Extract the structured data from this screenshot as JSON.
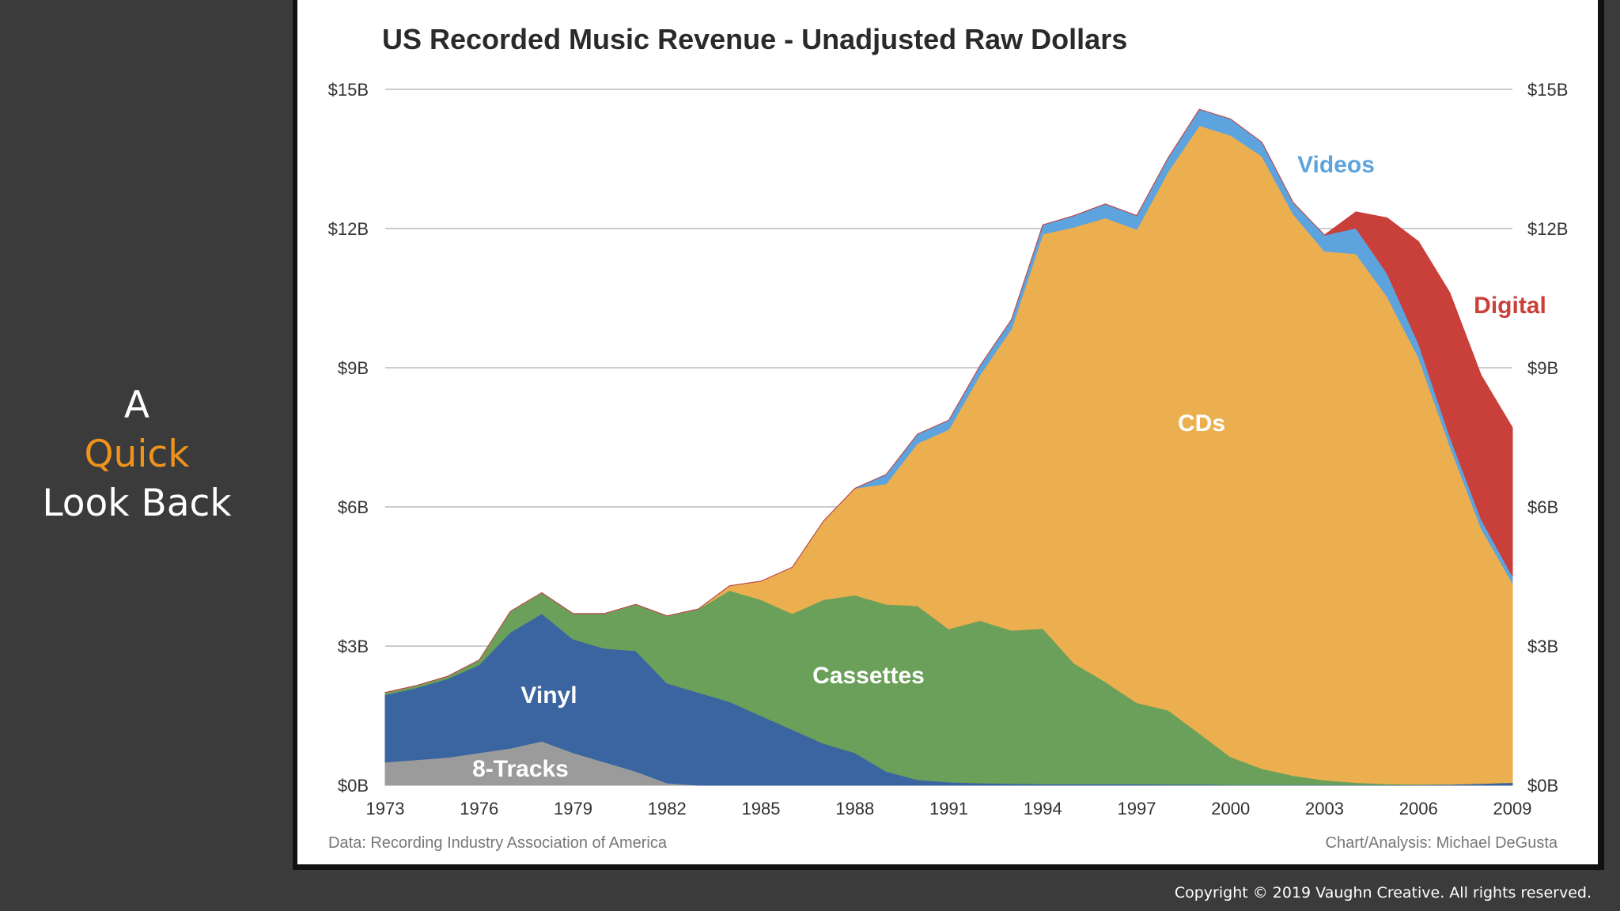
{
  "slide": {
    "title_line1": "A",
    "title_line2": "Quick",
    "title_line3": "Look Back",
    "copyright": "Copyright © 2019 Vaughn Creative. All rights reserved.",
    "accent_color": "#f0931a"
  },
  "chart_data": {
    "type": "area",
    "stacked": true,
    "title": "US Recorded Music Revenue - Unadjusted Raw Dollars",
    "xlabel": "",
    "ylabel": "",
    "x": [
      1973,
      1974,
      1975,
      1976,
      1977,
      1978,
      1979,
      1980,
      1981,
      1982,
      1983,
      1984,
      1985,
      1986,
      1987,
      1988,
      1989,
      1990,
      1991,
      1992,
      1993,
      1994,
      1995,
      1996,
      1997,
      1998,
      1999,
      2000,
      2001,
      2002,
      2003,
      2004,
      2005,
      2006,
      2007,
      2008,
      2009
    ],
    "xticks": [
      1973,
      1976,
      1979,
      1982,
      1985,
      1988,
      1991,
      1994,
      1997,
      2000,
      2003,
      2006,
      2009
    ],
    "xtick_labels": [
      "1973",
      "1976",
      "1979",
      "1982",
      "1985",
      "1988",
      "1991",
      "1994",
      "1997",
      "2000",
      "2003",
      "2006",
      "2009"
    ],
    "ylim": [
      0,
      15
    ],
    "yticks": [
      0,
      3,
      6,
      9,
      12,
      15
    ],
    "ytick_labels": [
      "$0B",
      "$3B",
      "$6B",
      "$9B",
      "$12B",
      "$15B"
    ],
    "grid": true,
    "series": [
      {
        "name": "8-Tracks",
        "label": "8-Tracks",
        "color": "#9b9b9b",
        "values": [
          0.5,
          0.55,
          0.6,
          0.7,
          0.8,
          0.95,
          0.7,
          0.5,
          0.3,
          0.05,
          0,
          0,
          0,
          0,
          0,
          0,
          0,
          0,
          0,
          0,
          0,
          0,
          0,
          0,
          0,
          0,
          0,
          0,
          0,
          0,
          0,
          0,
          0,
          0,
          0,
          0,
          0
        ]
      },
      {
        "name": "Vinyl",
        "label": "Vinyl",
        "color": "#3b65a0",
        "values": [
          1.45,
          1.55,
          1.7,
          1.9,
          2.5,
          2.75,
          2.45,
          2.45,
          2.6,
          2.15,
          2.0,
          1.8,
          1.5,
          1.2,
          0.9,
          0.7,
          0.3,
          0.12,
          0.07,
          0.05,
          0.04,
          0.03,
          0.03,
          0.03,
          0.03,
          0.02,
          0.02,
          0.01,
          0.01,
          0.01,
          0.01,
          0.01,
          0.01,
          0.01,
          0.02,
          0.04,
          0.06
        ]
      },
      {
        "name": "Cassettes",
        "label": "Cassettes",
        "color": "#6aa05a",
        "values": [
          0.05,
          0.05,
          0.05,
          0.1,
          0.45,
          0.45,
          0.55,
          0.75,
          1.0,
          1.45,
          1.8,
          2.4,
          2.5,
          2.5,
          3.1,
          3.4,
          3.6,
          3.75,
          3.3,
          3.5,
          3.3,
          3.35,
          2.6,
          2.2,
          1.75,
          1.6,
          1.1,
          0.6,
          0.35,
          0.2,
          0.1,
          0.05,
          0.02,
          0.01,
          0,
          0,
          0
        ]
      },
      {
        "name": "CDs",
        "label": "CDs",
        "color": "#ecaf50",
        "values": [
          0,
          0,
          0,
          0,
          0,
          0,
          0,
          0,
          0,
          0,
          0,
          0.1,
          0.4,
          1.0,
          1.7,
          2.3,
          2.6,
          3.5,
          4.3,
          5.3,
          6.5,
          8.5,
          9.4,
          10.0,
          10.2,
          11.6,
          13.1,
          13.4,
          13.2,
          12.1,
          11.4,
          11.4,
          10.5,
          9.2,
          7.3,
          5.5,
          4.3
        ]
      },
      {
        "name": "Videos",
        "label": "Videos",
        "color": "#5da3dd",
        "values": [
          0,
          0,
          0,
          0,
          0,
          0,
          0,
          0,
          0,
          0,
          0,
          0,
          0,
          0,
          0,
          0,
          0.2,
          0.2,
          0.2,
          0.2,
          0.2,
          0.2,
          0.25,
          0.3,
          0.3,
          0.3,
          0.35,
          0.35,
          0.3,
          0.25,
          0.35,
          0.55,
          0.5,
          0.3,
          0.2,
          0.2,
          0.15
        ]
      },
      {
        "name": "Digital",
        "label": "Digital",
        "color": "#c93f3a",
        "values": [
          0,
          0,
          0,
          0,
          0,
          0,
          0,
          0,
          0,
          0,
          0,
          0,
          0,
          0,
          0,
          0,
          0,
          0,
          0,
          0,
          0,
          0,
          0,
          0,
          0,
          0,
          0,
          0,
          0,
          0,
          0,
          0.35,
          1.2,
          2.2,
          3.1,
          3.1,
          3.2
        ]
      }
    ],
    "source_left": "Data: Recording Industry Association of America",
    "source_right": "Chart/Analysis: Michael DeGusta"
  }
}
